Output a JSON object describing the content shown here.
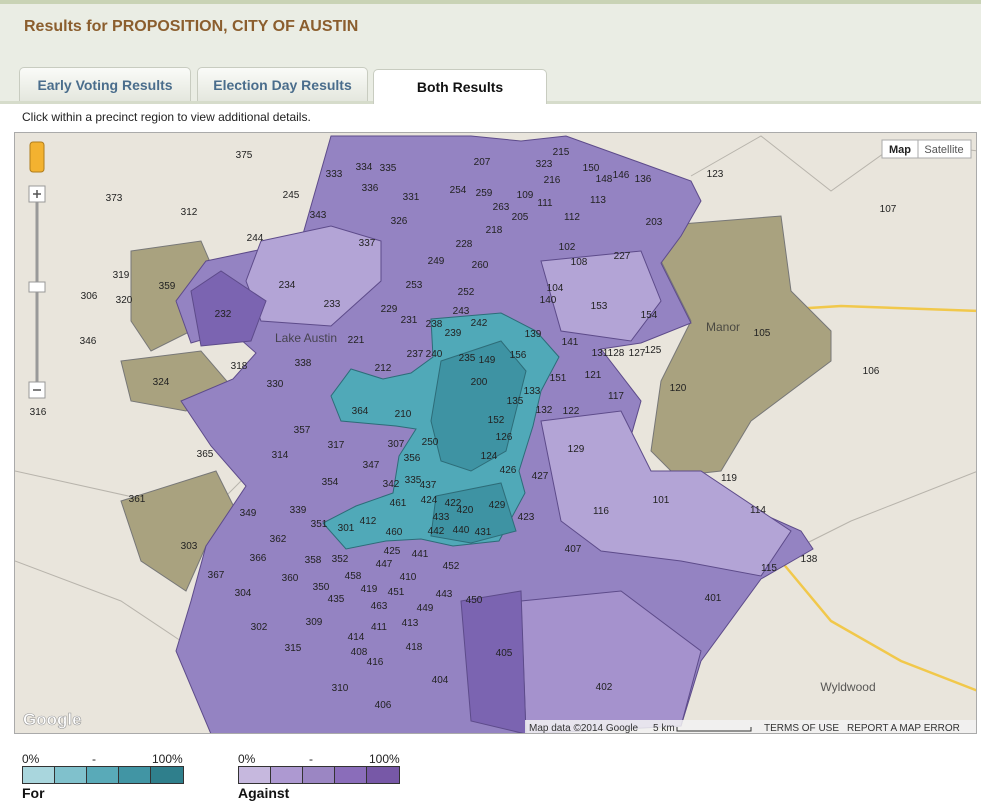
{
  "header": {
    "title": "Results for PROPOSITION, CITY OF AUSTIN"
  },
  "tabs": [
    "Early Voting Results",
    "Election Day Results",
    "Both Results"
  ],
  "instruction": "Click within a precinct region to view additional details.",
  "map": {
    "buttons": [
      "Map",
      "Satellite"
    ],
    "precincts": [
      "375",
      "373",
      "312",
      "245",
      "333",
      "343",
      "244",
      "337",
      "207",
      "123",
      "107",
      "203",
      "113",
      "112",
      "227",
      "359",
      "319",
      "306",
      "320",
      "346",
      "232",
      "234",
      "233",
      "153",
      "154",
      "105",
      "106",
      "324",
      "318",
      "338",
      "330",
      "221",
      "212",
      "364",
      "156",
      "139",
      "120",
      "117",
      "121",
      "122",
      "132",
      "133",
      "135",
      "129",
      "427",
      "426",
      "429",
      "423",
      "116",
      "101",
      "114",
      "119",
      "115",
      "138",
      "407",
      "401",
      "402",
      "405",
      "404",
      "450",
      "452",
      "441",
      "431",
      "440",
      "442",
      "433",
      "420",
      "301",
      "303",
      "361",
      "365",
      "349",
      "314",
      "317",
      "354",
      "339",
      "367",
      "304",
      "302",
      "360",
      "366",
      "310",
      "406",
      "315",
      "309",
      "408",
      "414",
      "416",
      "418",
      "411",
      "413",
      "463",
      "443",
      "449",
      "250",
      "124",
      "126",
      "152",
      "200",
      "149",
      "242",
      "210",
      "307",
      "347",
      "342",
      "356",
      "335",
      "461",
      "424",
      "422",
      "437",
      "151",
      "141",
      "125",
      "127",
      "128",
      "131",
      "140",
      "104",
      "108",
      "102",
      "218",
      "228",
      "260",
      "252",
      "253",
      "249",
      "231",
      "229",
      "237",
      "240",
      "238",
      "243",
      "239",
      "235",
      "254",
      "259",
      "263",
      "205",
      "111",
      "109",
      "215",
      "150",
      "148",
      "323",
      "331",
      "326",
      "336",
      "335",
      "334",
      "216",
      "136",
      "146",
      "357",
      "351",
      "362",
      "350",
      "435",
      "458",
      "419",
      "451",
      "410",
      "447",
      "425",
      "352",
      "358",
      "412",
      "460",
      "316"
    ],
    "places": [
      "Lake Austin",
      "Manor",
      "Wyldwood"
    ],
    "footer": {
      "logo": "Google",
      "attribution": "Map data ©2014 Google",
      "scale": "5 km",
      "terms": "TERMS OF USE",
      "report": "REPORT A MAP ERROR"
    }
  },
  "legend": [
    {
      "min": "0%",
      "mid": "-",
      "max": "100%",
      "label": "For"
    },
    {
      "min": "0%",
      "mid": "-",
      "max": "100%",
      "label": "Against"
    }
  ]
}
